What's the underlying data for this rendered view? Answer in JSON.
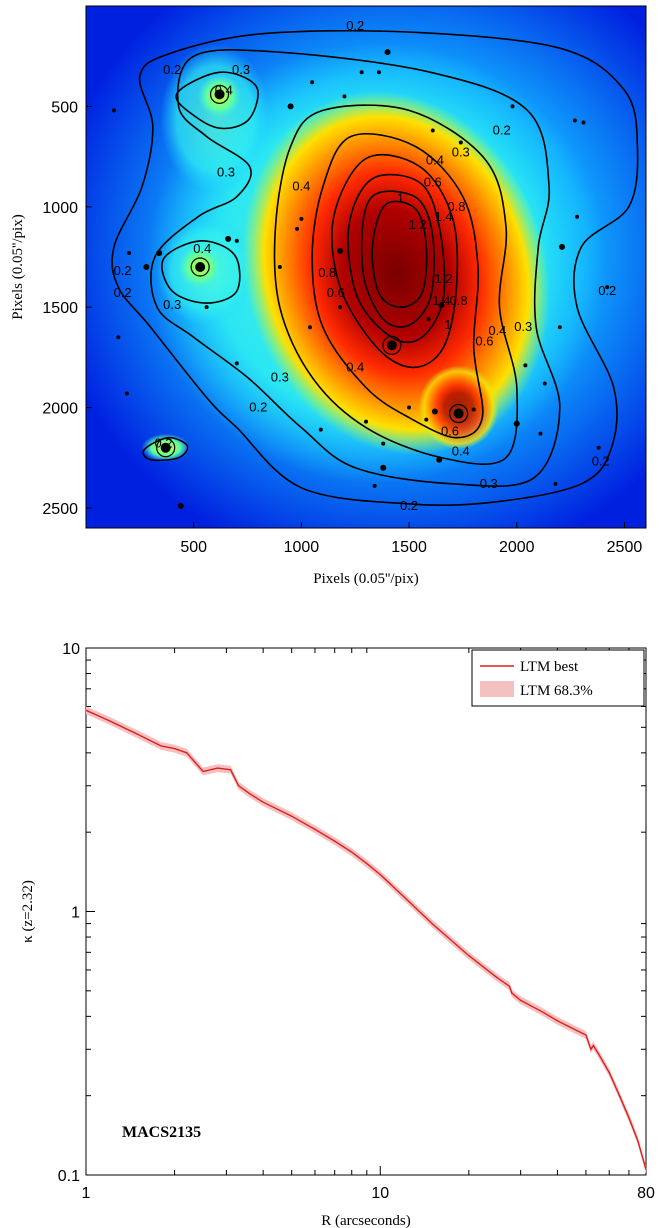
{
  "chart_data": [
    {
      "type": "heatmap",
      "subtype": "convergence map with contours",
      "xlabel": "Pixels (0.05''/pix)",
      "ylabel": "Pixels (0.05''/pix)",
      "xlim": [
        0,
        2600
      ],
      "ylim": [
        2600,
        0
      ],
      "y_axis_inverted": true,
      "xticks": [
        500,
        1000,
        1500,
        2000,
        2500
      ],
      "yticks": [
        500,
        1000,
        1500,
        2000,
        2500
      ],
      "colormap": "jet",
      "contour_levels": [
        0.2,
        0.3,
        0.4,
        0.6,
        0.8,
        1,
        1.2,
        1.4
      ],
      "peak_center": [
        1400,
        1200
      ],
      "contour_label_positions": [
        {
          "label": "0.2",
          "x": 1250,
          "y": 100
        },
        {
          "label": "0.2",
          "x": 400,
          "y": 320
        },
        {
          "label": "0.2",
          "x": 170,
          "y": 1320
        },
        {
          "label": "0.2",
          "x": 170,
          "y": 1430
        },
        {
          "label": "0.2",
          "x": 800,
          "y": 2000
        },
        {
          "label": "0.2",
          "x": 360,
          "y": 2180
        },
        {
          "label": "0.2",
          "x": 1930,
          "y": 620
        },
        {
          "label": "0.2",
          "x": 2420,
          "y": 1420
        },
        {
          "label": "0.2",
          "x": 2390,
          "y": 2270
        },
        {
          "label": "0.2",
          "x": 1500,
          "y": 2490
        },
        {
          "label": "0.3",
          "x": 720,
          "y": 320
        },
        {
          "label": "0.3",
          "x": 650,
          "y": 830
        },
        {
          "label": "0.3",
          "x": 400,
          "y": 1490
        },
        {
          "label": "0.3",
          "x": 900,
          "y": 1850
        },
        {
          "label": "0.3",
          "x": 1740,
          "y": 730
        },
        {
          "label": "0.3",
          "x": 2030,
          "y": 1600
        },
        {
          "label": "0.3",
          "x": 1870,
          "y": 2380
        },
        {
          "label": "0.4",
          "x": 640,
          "y": 420
        },
        {
          "label": "0.4",
          "x": 540,
          "y": 1210
        },
        {
          "label": "0.4",
          "x": 1000,
          "y": 900
        },
        {
          "label": "0.4",
          "x": 1250,
          "y": 1800
        },
        {
          "label": "0.4",
          "x": 1620,
          "y": 770
        },
        {
          "label": "0.4",
          "x": 1910,
          "y": 1620
        },
        {
          "label": "0.4",
          "x": 1740,
          "y": 2220
        },
        {
          "label": "0.6",
          "x": 1610,
          "y": 880
        },
        {
          "label": "0.6",
          "x": 1160,
          "y": 1430
        },
        {
          "label": "0.6",
          "x": 1850,
          "y": 1670
        },
        {
          "label": "0.6",
          "x": 1690,
          "y": 2120
        },
        {
          "label": "0.8",
          "x": 1720,
          "y": 1000
        },
        {
          "label": "0.8",
          "x": 1120,
          "y": 1330
        },
        {
          "label": "0.8",
          "x": 1730,
          "y": 1470
        },
        {
          "label": "1",
          "x": 1460,
          "y": 960
        },
        {
          "label": "1",
          "x": 1680,
          "y": 1590
        },
        {
          "label": "1.2",
          "x": 1540,
          "y": 1090
        },
        {
          "label": "1.2",
          "x": 1660,
          "y": 1360
        },
        {
          "label": "1.4",
          "x": 1660,
          "y": 1050
        },
        {
          "label": "1.4",
          "x": 1650,
          "y": 1470
        }
      ],
      "bright_sources": [
        {
          "x": 620,
          "y": 440
        },
        {
          "x": 530,
          "y": 1300
        },
        {
          "x": 1420,
          "y": 1690
        },
        {
          "x": 1730,
          "y": 2030
        },
        {
          "x": 370,
          "y": 2200
        }
      ]
    },
    {
      "type": "line",
      "scale": "log-log",
      "xlabel": "R (arcseconds)",
      "ylabel": "κ (z=2.32)",
      "xlim": [
        1,
        80
      ],
      "ylim": [
        0.1,
        10
      ],
      "xticks": [
        1,
        10,
        80
      ],
      "yticks": [
        0.1,
        1,
        10
      ],
      "legend_position": "top-right",
      "annotation": "MACS2135",
      "series": [
        {
          "name": "LTM best",
          "color": "#e01e1e",
          "x": [
            1,
            1.2,
            1.5,
            1.8,
            2,
            2.2,
            2.5,
            2.8,
            3.1,
            3.3,
            3.6,
            4,
            5,
            6,
            7,
            8,
            9,
            10,
            12,
            15,
            20,
            25,
            27.5,
            28,
            30,
            35,
            40,
            45,
            50,
            52,
            53,
            55,
            60,
            65,
            70,
            75,
            80
          ],
          "y": [
            5.8,
            5.3,
            4.7,
            4.25,
            4.15,
            4.0,
            3.4,
            3.5,
            3.45,
            3.0,
            2.8,
            2.6,
            2.3,
            2.05,
            1.85,
            1.68,
            1.52,
            1.38,
            1.14,
            0.9,
            0.68,
            0.56,
            0.52,
            0.49,
            0.46,
            0.42,
            0.385,
            0.36,
            0.34,
            0.3,
            0.31,
            0.29,
            0.245,
            0.2,
            0.165,
            0.135,
            0.105
          ]
        },
        {
          "name": "LTM 68.3%",
          "color": "#f5c0c0",
          "band_halfwidth_dex": 0.015
        }
      ]
    }
  ]
}
